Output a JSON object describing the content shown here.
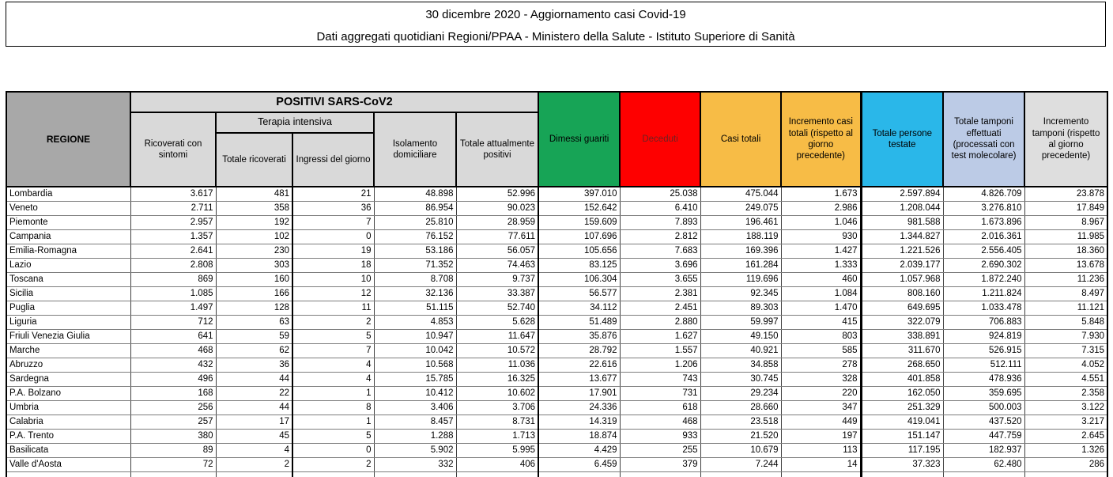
{
  "title": {
    "line1": "30 dicembre 2020 - Aggiornamento casi Covid-19",
    "line2": "Dati aggregati quotidiani Regioni/PPAA - Ministero della Salute - Istituto Superiore di Sanità"
  },
  "table": {
    "header": {
      "regione": "REGIONE",
      "positivi_group": "POSITIVI SARS-CoV2",
      "terapia_group": "Terapia intensiva",
      "col_ricoverati": "Ricoverati con sintomi",
      "col_totale_ricoverati": "Totale ricoverati",
      "col_ingressi": "Ingressi del giorno",
      "col_isolamento": "Isolamento domiciliare",
      "col_totale_positivi": "Totale attualmente positivi",
      "col_dimessi": "Dimessi guariti",
      "col_deceduti": "Deceduti",
      "col_casi_totali": "Casi totali",
      "col_incremento_casi": "Incremento casi totali (rispetto al giorno precedente)",
      "col_testate": "Totale persone testate",
      "col_tamponi": "Totale tamponi effettuati (processati con test molecolare)",
      "col_incremento_tamponi": "Incremento tamponi (rispetto al giorno precedente)"
    },
    "colors": {
      "header_gray": "#a8a8a8",
      "header_light": "#d9d9d9",
      "green": "#17a456",
      "red": "#fe0000",
      "orange": "#f7bc46",
      "cyan": "#2ab7e9",
      "periwinkle": "#bccbe6",
      "light_gray": "#dedede",
      "deceduti_text": "#6e2222"
    },
    "rows": [
      {
        "regione": "Lombardia",
        "values": [
          "3.617",
          "481",
          "21",
          "48.898",
          "52.996",
          "397.010",
          "25.038",
          "475.044",
          "1.673",
          "2.597.894",
          "4.826.709",
          "23.878"
        ]
      },
      {
        "regione": "Veneto",
        "values": [
          "2.711",
          "358",
          "36",
          "86.954",
          "90.023",
          "152.642",
          "6.410",
          "249.075",
          "2.986",
          "1.208.044",
          "3.276.810",
          "17.849"
        ]
      },
      {
        "regione": "Piemonte",
        "values": [
          "2.957",
          "192",
          "7",
          "25.810",
          "28.959",
          "159.609",
          "7.893",
          "196.461",
          "1.046",
          "981.588",
          "1.673.896",
          "8.967"
        ]
      },
      {
        "regione": "Campania",
        "values": [
          "1.357",
          "102",
          "0",
          "76.152",
          "77.611",
          "107.696",
          "2.812",
          "188.119",
          "930",
          "1.344.827",
          "2.016.361",
          "11.985"
        ]
      },
      {
        "regione": "Emilia-Romagna",
        "values": [
          "2.641",
          "230",
          "19",
          "53.186",
          "56.057",
          "105.656",
          "7.683",
          "169.396",
          "1.427",
          "1.221.526",
          "2.556.405",
          "18.360"
        ]
      },
      {
        "regione": "Lazio",
        "values": [
          "2.808",
          "303",
          "18",
          "71.352",
          "74.463",
          "83.125",
          "3.696",
          "161.284",
          "1.333",
          "2.039.177",
          "2.690.302",
          "13.678"
        ]
      },
      {
        "regione": "Toscana",
        "values": [
          "869",
          "160",
          "10",
          "8.708",
          "9.737",
          "106.304",
          "3.655",
          "119.696",
          "460",
          "1.057.968",
          "1.872.240",
          "11.236"
        ]
      },
      {
        "regione": "Sicilia",
        "values": [
          "1.085",
          "166",
          "12",
          "32.136",
          "33.387",
          "56.577",
          "2.381",
          "92.345",
          "1.084",
          "808.160",
          "1.211.824",
          "8.497"
        ]
      },
      {
        "regione": "Puglia",
        "values": [
          "1.497",
          "128",
          "11",
          "51.115",
          "52.740",
          "34.112",
          "2.451",
          "89.303",
          "1.470",
          "649.695",
          "1.033.478",
          "11.121"
        ]
      },
      {
        "regione": "Liguria",
        "values": [
          "712",
          "63",
          "2",
          "4.853",
          "5.628",
          "51.489",
          "2.880",
          "59.997",
          "415",
          "322.079",
          "706.883",
          "5.848"
        ]
      },
      {
        "regione": "Friuli Venezia Giulia",
        "values": [
          "641",
          "59",
          "5",
          "10.947",
          "11.647",
          "35.876",
          "1.627",
          "49.150",
          "803",
          "338.891",
          "924.819",
          "7.930"
        ]
      },
      {
        "regione": "Marche",
        "values": [
          "468",
          "62",
          "7",
          "10.042",
          "10.572",
          "28.792",
          "1.557",
          "40.921",
          "585",
          "311.670",
          "526.915",
          "7.315"
        ]
      },
      {
        "regione": "Abruzzo",
        "values": [
          "432",
          "36",
          "4",
          "10.568",
          "11.036",
          "22.616",
          "1.206",
          "34.858",
          "278",
          "268.650",
          "512.111",
          "4.052"
        ]
      },
      {
        "regione": "Sardegna",
        "values": [
          "496",
          "44",
          "4",
          "15.785",
          "16.325",
          "13.677",
          "743",
          "30.745",
          "328",
          "401.858",
          "478.936",
          "4.551"
        ]
      },
      {
        "regione": "P.A. Bolzano",
        "values": [
          "168",
          "22",
          "1",
          "10.412",
          "10.602",
          "17.901",
          "731",
          "29.234",
          "220",
          "162.050",
          "359.695",
          "2.358"
        ]
      },
      {
        "regione": "Umbria",
        "values": [
          "256",
          "44",
          "8",
          "3.406",
          "3.706",
          "24.336",
          "618",
          "28.660",
          "347",
          "251.329",
          "500.003",
          "3.122"
        ]
      },
      {
        "regione": "Calabria",
        "values": [
          "257",
          "17",
          "1",
          "8.457",
          "8.731",
          "14.319",
          "468",
          "23.518",
          "449",
          "419.041",
          "437.520",
          "3.217"
        ]
      },
      {
        "regione": "P.A. Trento",
        "values": [
          "380",
          "45",
          "5",
          "1.288",
          "1.713",
          "18.874",
          "933",
          "21.520",
          "197",
          "151.147",
          "447.759",
          "2.645"
        ]
      },
      {
        "regione": "Basilicata",
        "values": [
          "89",
          "4",
          "0",
          "5.902",
          "5.995",
          "4.429",
          "255",
          "10.679",
          "113",
          "117.195",
          "182.937",
          "1.326"
        ]
      },
      {
        "regione": "Valle d'Aosta",
        "values": [
          "72",
          "2",
          "2",
          "332",
          "406",
          "6.459",
          "379",
          "7.244",
          "14",
          "37.323",
          "62.480",
          "286"
        ]
      }
    ]
  }
}
